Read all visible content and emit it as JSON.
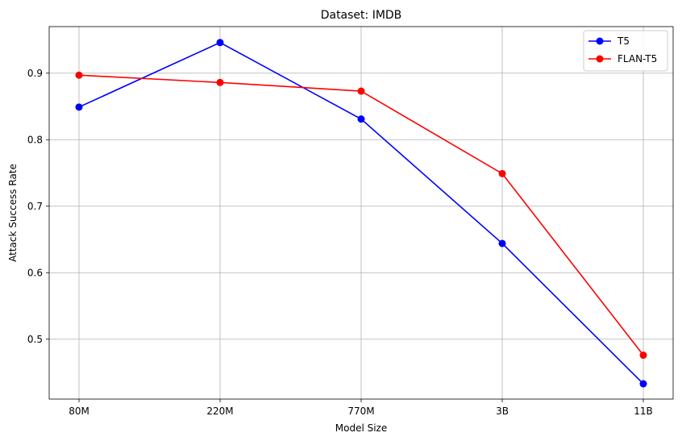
{
  "chart_data": {
    "type": "line",
    "title": "Dataset: IMDB",
    "xlabel": "Model Size",
    "ylabel": "Attack Success Rate",
    "categories": [
      "80M",
      "220M",
      "770M",
      "3B",
      "11B"
    ],
    "ylim": [
      0.41,
      0.97
    ],
    "yticks": [
      "0.5",
      "0.6",
      "0.7",
      "0.8",
      "0.9"
    ],
    "grid": true,
    "legend_position": "top-right",
    "series": [
      {
        "name": "T5",
        "color": "#0000ff",
        "values": [
          0.849,
          0.946,
          0.831,
          0.644,
          0.433
        ]
      },
      {
        "name": "FLAN-T5",
        "color": "#ff0000",
        "values": [
          0.897,
          0.886,
          0.873,
          0.749,
          0.476
        ]
      }
    ]
  }
}
